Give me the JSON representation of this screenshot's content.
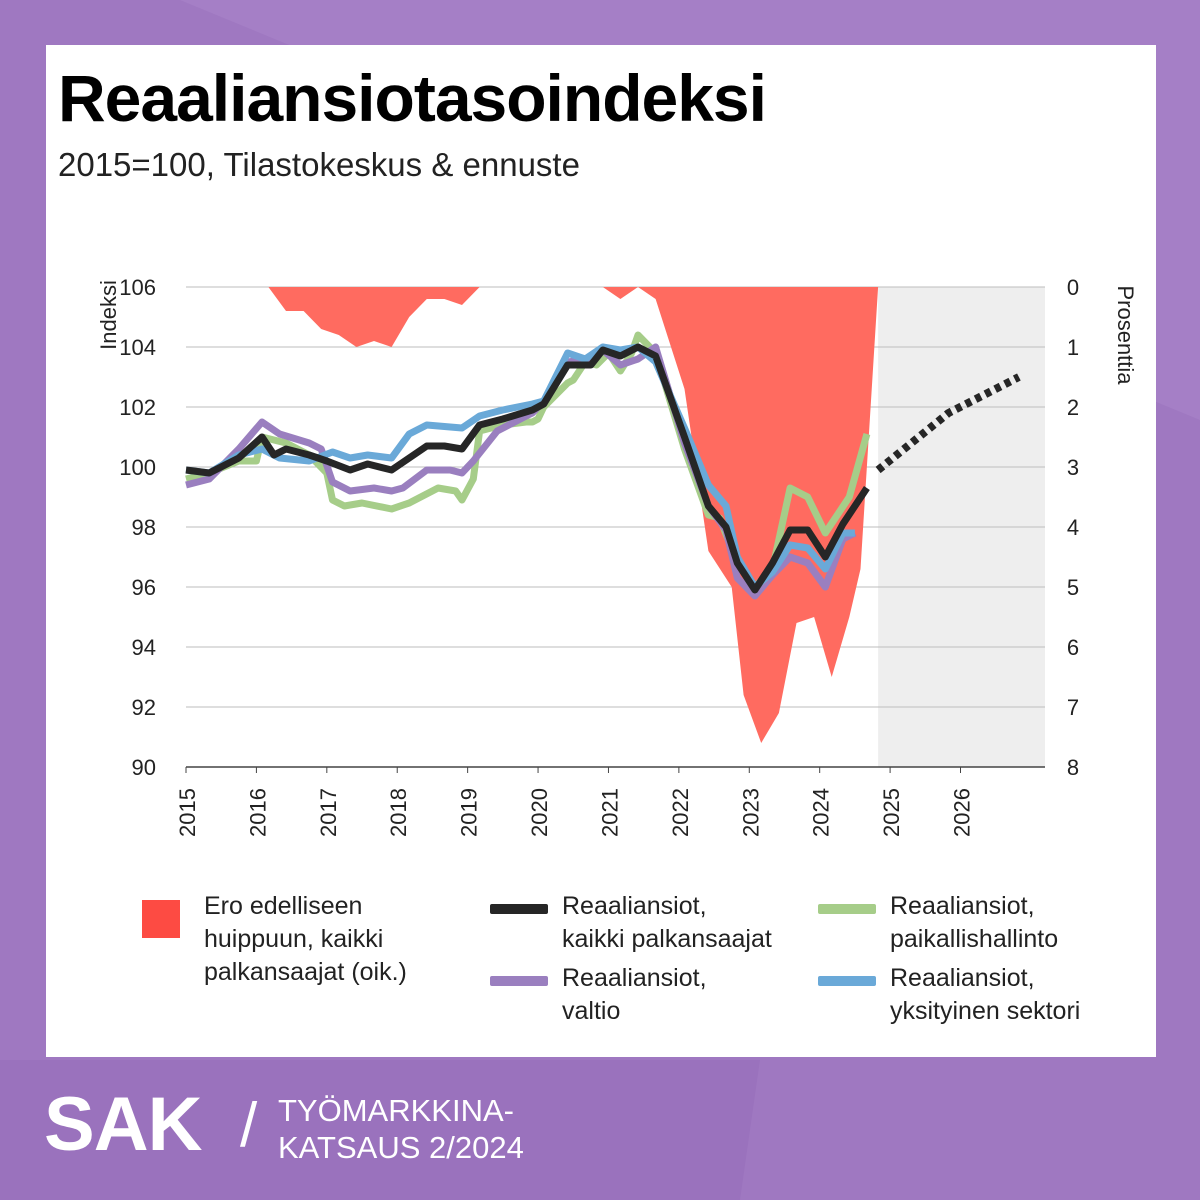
{
  "colors": {
    "background": "#a57fc6",
    "background_dark": "#9a72bd",
    "card": "#ffffff",
    "gap_area": "#ff6b60",
    "gap_swatch": "#fd4b43",
    "all_workers": "#262626",
    "local_gov": "#a6cd89",
    "state": "#9a7fbf",
    "private": "#6aa9d8",
    "forecast_shade": "#eeeeee"
  },
  "title": "Reaaliansiotasoindeksi",
  "subtitle": "2015=100, Tilastokeskus & ennuste",
  "legend": [
    {
      "id": "gap",
      "type": "box",
      "color_key": "gap_swatch",
      "label": "Ero edelliseen\nhuippuun, kaikki\npalkansaajat (oik.)"
    },
    {
      "id": "all",
      "type": "line",
      "color_key": "all_workers",
      "label": "Reaaliansiot,\nkaikki palkansaajat"
    },
    {
      "id": "local",
      "type": "line",
      "color_key": "local_gov",
      "label": "Reaaliansiot,\npaikallishallinto"
    },
    {
      "id": "state",
      "type": "line",
      "color_key": "state",
      "label": "Reaaliansiot,\nvaltio"
    },
    {
      "id": "private",
      "type": "line",
      "color_key": "private",
      "label": "Reaaliansiot,\nyksityinen sektori"
    }
  ],
  "footer": {
    "logo": "SAK",
    "separator": "/",
    "text": "TYÖMARKKINA-\nKATSAUS 2/2024"
  },
  "chart_data": {
    "type": "line",
    "ylabel": "Indeksi",
    "y2label": "Prosenttia",
    "ylim": [
      90,
      106
    ],
    "y_ticks": [
      "106",
      "104",
      "102",
      "100",
      "98",
      "96",
      "94",
      "92",
      "90"
    ],
    "y2lim": [
      0,
      8
    ],
    "y2_reversed": true,
    "y2_ticks": [
      "0",
      "1",
      "2",
      "3",
      "4",
      "5",
      "6",
      "7",
      "8"
    ],
    "xlim": [
      2015,
      2027.2
    ],
    "x_ticks": [
      "2015",
      "2016",
      "2017",
      "2018",
      "2019",
      "2020",
      "2021",
      "2022",
      "2023",
      "2024",
      "2025",
      "2026"
    ],
    "forecast_shade_from": 2024.83,
    "grid": true,
    "series": [
      {
        "name": "Reaaliansiot, kaikki palkansaajat",
        "color_key": "all_workers",
        "kind": "line",
        "points": [
          [
            2015.0,
            99.9
          ],
          [
            2015.33,
            99.8
          ],
          [
            2015.75,
            100.3
          ],
          [
            2016.08,
            101.0
          ],
          [
            2016.25,
            100.4
          ],
          [
            2016.42,
            100.6
          ],
          [
            2016.75,
            100.4
          ],
          [
            2017.0,
            100.2
          ],
          [
            2017.33,
            99.9
          ],
          [
            2017.58,
            100.1
          ],
          [
            2017.92,
            99.9
          ],
          [
            2018.17,
            100.3
          ],
          [
            2018.42,
            100.7
          ],
          [
            2018.67,
            100.7
          ],
          [
            2018.92,
            100.6
          ],
          [
            2019.17,
            101.4
          ],
          [
            2019.5,
            101.6
          ],
          [
            2019.92,
            101.9
          ],
          [
            2020.08,
            102.1
          ],
          [
            2020.42,
            103.4
          ],
          [
            2020.75,
            103.4
          ],
          [
            2020.92,
            103.9
          ],
          [
            2021.17,
            103.7
          ],
          [
            2021.42,
            104.0
          ],
          [
            2021.67,
            103.7
          ],
          [
            2022.08,
            101.0
          ],
          [
            2022.42,
            98.7
          ],
          [
            2022.67,
            98.0
          ],
          [
            2022.83,
            96.8
          ],
          [
            2023.08,
            95.9
          ],
          [
            2023.33,
            96.8
          ],
          [
            2023.58,
            97.9
          ],
          [
            2023.83,
            97.9
          ],
          [
            2024.08,
            97.0
          ],
          [
            2024.33,
            98.1
          ],
          [
            2024.67,
            99.3
          ]
        ]
      },
      {
        "name": "Reaaliansiot, paikallishallinto",
        "color_key": "local_gov",
        "kind": "line",
        "points": [
          [
            2015.0,
            99.6
          ],
          [
            2015.33,
            99.8
          ],
          [
            2015.75,
            100.2
          ],
          [
            2016.0,
            100.2
          ],
          [
            2016.08,
            101.0
          ],
          [
            2016.42,
            100.8
          ],
          [
            2016.75,
            100.4
          ],
          [
            2017.0,
            99.8
          ],
          [
            2017.08,
            98.9
          ],
          [
            2017.25,
            98.7
          ],
          [
            2017.5,
            98.8
          ],
          [
            2017.92,
            98.6
          ],
          [
            2018.17,
            98.8
          ],
          [
            2018.58,
            99.3
          ],
          [
            2018.83,
            99.2
          ],
          [
            2018.92,
            98.9
          ],
          [
            2019.08,
            99.6
          ],
          [
            2019.17,
            101.2
          ],
          [
            2019.5,
            101.4
          ],
          [
            2019.83,
            101.5
          ],
          [
            2019.92,
            101.5
          ],
          [
            2020.0,
            101.6
          ],
          [
            2020.08,
            102.0
          ],
          [
            2020.42,
            102.8
          ],
          [
            2020.5,
            102.9
          ],
          [
            2020.67,
            103.5
          ],
          [
            2020.83,
            103.4
          ],
          [
            2021.0,
            103.8
          ],
          [
            2021.17,
            103.2
          ],
          [
            2021.33,
            103.8
          ],
          [
            2021.42,
            104.4
          ],
          [
            2021.67,
            103.8
          ],
          [
            2022.08,
            100.6
          ],
          [
            2022.42,
            98.4
          ],
          [
            2022.58,
            98.3
          ],
          [
            2022.83,
            96.8
          ],
          [
            2023.08,
            96.0
          ],
          [
            2023.33,
            96.6
          ],
          [
            2023.58,
            99.3
          ],
          [
            2023.83,
            99.0
          ],
          [
            2024.08,
            97.8
          ],
          [
            2024.42,
            99.0
          ],
          [
            2024.67,
            101.1
          ]
        ]
      },
      {
        "name": "Reaaliansiot, valtio",
        "color_key": "state",
        "kind": "line",
        "points": [
          [
            2015.0,
            99.4
          ],
          [
            2015.33,
            99.6
          ],
          [
            2015.75,
            100.6
          ],
          [
            2016.08,
            101.5
          ],
          [
            2016.33,
            101.1
          ],
          [
            2016.75,
            100.8
          ],
          [
            2016.92,
            100.6
          ],
          [
            2017.08,
            99.5
          ],
          [
            2017.33,
            99.2
          ],
          [
            2017.67,
            99.3
          ],
          [
            2017.92,
            99.2
          ],
          [
            2018.08,
            99.3
          ],
          [
            2018.42,
            99.9
          ],
          [
            2018.75,
            99.9
          ],
          [
            2018.92,
            99.8
          ],
          [
            2019.08,
            100.2
          ],
          [
            2019.42,
            101.2
          ],
          [
            2019.83,
            101.7
          ],
          [
            2019.92,
            101.8
          ],
          [
            2020.08,
            102.2
          ],
          [
            2020.42,
            103.5
          ],
          [
            2020.75,
            103.6
          ],
          [
            2020.92,
            103.9
          ],
          [
            2021.17,
            103.4
          ],
          [
            2021.42,
            103.6
          ],
          [
            2021.67,
            104.0
          ],
          [
            2022.08,
            100.8
          ],
          [
            2022.42,
            98.7
          ],
          [
            2022.67,
            97.9
          ],
          [
            2022.83,
            96.3
          ],
          [
            2023.08,
            95.7
          ],
          [
            2023.33,
            96.4
          ],
          [
            2023.58,
            97.0
          ],
          [
            2023.83,
            96.8
          ],
          [
            2024.08,
            96.0
          ],
          [
            2024.33,
            97.6
          ],
          [
            2024.5,
            97.8
          ]
        ]
      },
      {
        "name": "Reaaliansiot, yksityinen sektori",
        "color_key": "private",
        "kind": "line",
        "points": [
          [
            2015.0,
            99.9
          ],
          [
            2015.33,
            99.8
          ],
          [
            2015.75,
            100.4
          ],
          [
            2016.08,
            100.6
          ],
          [
            2016.33,
            100.3
          ],
          [
            2016.75,
            100.2
          ],
          [
            2017.08,
            100.5
          ],
          [
            2017.33,
            100.3
          ],
          [
            2017.58,
            100.4
          ],
          [
            2017.92,
            100.3
          ],
          [
            2018.17,
            101.1
          ],
          [
            2018.42,
            101.4
          ],
          [
            2018.92,
            101.3
          ],
          [
            2019.17,
            101.7
          ],
          [
            2019.5,
            101.9
          ],
          [
            2019.92,
            102.1
          ],
          [
            2020.08,
            102.2
          ],
          [
            2020.42,
            103.8
          ],
          [
            2020.67,
            103.6
          ],
          [
            2020.92,
            104.0
          ],
          [
            2021.17,
            103.9
          ],
          [
            2021.42,
            104.0
          ],
          [
            2021.67,
            103.5
          ],
          [
            2022.08,
            101.3
          ],
          [
            2022.42,
            99.4
          ],
          [
            2022.67,
            98.7
          ],
          [
            2022.83,
            97.0
          ],
          [
            2023.08,
            96.0
          ],
          [
            2023.33,
            96.5
          ],
          [
            2023.58,
            97.4
          ],
          [
            2023.83,
            97.3
          ],
          [
            2024.08,
            96.6
          ],
          [
            2024.33,
            97.8
          ],
          [
            2024.5,
            97.8
          ]
        ]
      },
      {
        "name": "Ennuste",
        "color_key": "all_workers",
        "kind": "dotted",
        "points": [
          [
            2024.83,
            99.9
          ],
          [
            2025.83,
            101.8
          ],
          [
            2026.83,
            103.0
          ]
        ]
      },
      {
        "name": "Ero edelliseen huippuun, kaikki palkansaajat (oik.)",
        "color_key": "gap_area",
        "kind": "area_right_axis",
        "points": [
          [
            2016.17,
            0.0
          ],
          [
            2016.42,
            0.4
          ],
          [
            2016.67,
            0.4
          ],
          [
            2016.92,
            0.7
          ],
          [
            2017.17,
            0.8
          ],
          [
            2017.42,
            1.0
          ],
          [
            2017.67,
            0.9
          ],
          [
            2017.92,
            1.0
          ],
          [
            2018.17,
            0.5
          ],
          [
            2018.42,
            0.2
          ],
          [
            2018.67,
            0.2
          ],
          [
            2018.92,
            0.3
          ],
          [
            2019.17,
            0.0
          ],
          [
            2020.92,
            0.0
          ],
          [
            2021.17,
            0.2
          ],
          [
            2021.42,
            0.0
          ],
          [
            2021.67,
            0.2
          ],
          [
            2022.08,
            1.7
          ],
          [
            2022.42,
            4.4
          ],
          [
            2022.75,
            5.0
          ],
          [
            2022.92,
            6.8
          ],
          [
            2023.17,
            7.6
          ],
          [
            2023.42,
            7.1
          ],
          [
            2023.67,
            5.6
          ],
          [
            2023.92,
            5.5
          ],
          [
            2024.17,
            6.5
          ],
          [
            2024.42,
            5.5
          ],
          [
            2024.58,
            4.7
          ],
          [
            2024.83,
            0.0
          ]
        ]
      }
    ]
  }
}
